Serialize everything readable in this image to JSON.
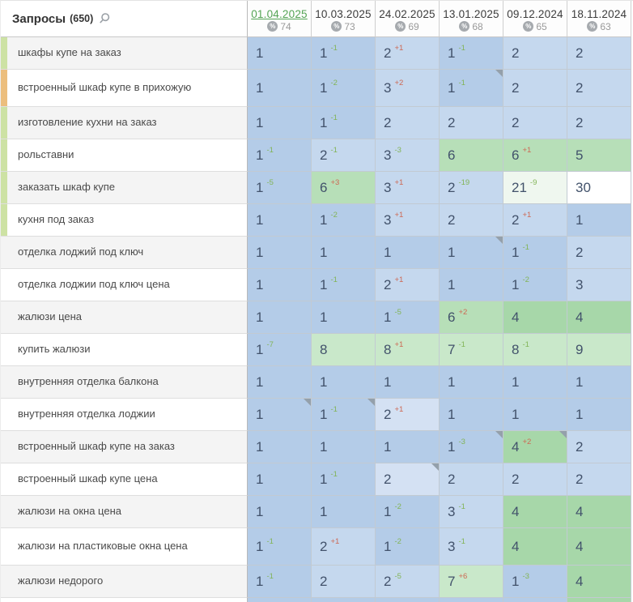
{
  "header": {
    "title": "Запросы",
    "count": "(650)",
    "search_icon": "magnifier",
    "columns": [
      {
        "date": "01.04.2025",
        "visibility": "74",
        "active": true
      },
      {
        "date": "10.03.2025",
        "visibility": "73",
        "active": false
      },
      {
        "date": "24.02.2025",
        "visibility": "69",
        "active": false
      },
      {
        "date": "13.01.2025",
        "visibility": "68",
        "active": false
      },
      {
        "date": "09.12.2024",
        "visibility": "65",
        "active": false
      },
      {
        "date": "18.11.2024",
        "visibility": "63",
        "active": false
      }
    ]
  },
  "rows": [
    {
      "keyword": "шкафы купе на заказ",
      "strip": "green",
      "zebra": "gray",
      "tall": false,
      "cells": [
        {
          "value": "1",
          "bg": "pos1"
        },
        {
          "value": "1",
          "change": "-1",
          "bg": "pos1"
        },
        {
          "value": "2",
          "change": "+1",
          "bg": "pos23"
        },
        {
          "value": "1",
          "change": "-1",
          "bg": "pos1"
        },
        {
          "value": "2",
          "bg": "pos23"
        },
        {
          "value": "2",
          "bg": "pos23"
        }
      ]
    },
    {
      "keyword": "встроенный шкаф купе в прихожую",
      "strip": "orange",
      "zebra": "white",
      "tall": true,
      "cells": [
        {
          "value": "1",
          "bg": "pos1"
        },
        {
          "value": "1",
          "change": "-2",
          "bg": "pos1"
        },
        {
          "value": "3",
          "change": "+2",
          "bg": "pos23"
        },
        {
          "value": "1",
          "change": "-1",
          "bg": "pos1",
          "marker": true
        },
        {
          "value": "2",
          "bg": "pos23"
        },
        {
          "value": "2",
          "bg": "pos23"
        }
      ]
    },
    {
      "keyword": "изготовление кухни на заказ",
      "strip": "green",
      "zebra": "gray",
      "tall": false,
      "cells": [
        {
          "value": "1",
          "bg": "pos1"
        },
        {
          "value": "1",
          "change": "-1",
          "bg": "pos1"
        },
        {
          "value": "2",
          "bg": "pos23"
        },
        {
          "value": "2",
          "bg": "pos23"
        },
        {
          "value": "2",
          "bg": "pos23"
        },
        {
          "value": "2",
          "bg": "pos23"
        }
      ]
    },
    {
      "keyword": "рольставни",
      "strip": "green",
      "zebra": "white",
      "tall": false,
      "cells": [
        {
          "value": "1",
          "change": "-1",
          "bg": "pos1"
        },
        {
          "value": "2",
          "change": "-1",
          "bg": "pos23"
        },
        {
          "value": "3",
          "change": "-3",
          "bg": "pos23"
        },
        {
          "value": "6",
          "bg": "green67"
        },
        {
          "value": "6",
          "change": "+1",
          "bg": "green67"
        },
        {
          "value": "5",
          "bg": "green67"
        }
      ]
    },
    {
      "keyword": "заказать шкаф купе",
      "strip": "green",
      "zebra": "gray",
      "tall": false,
      "cells": [
        {
          "value": "1",
          "change": "-5",
          "bg": "pos1"
        },
        {
          "value": "6",
          "change": "+3",
          "bg": "green67"
        },
        {
          "value": "3",
          "change": "+1",
          "bg": "pos23"
        },
        {
          "value": "2",
          "change": "-19",
          "bg": "pos23"
        },
        {
          "value": "21",
          "change": "-9",
          "bg": "pale"
        },
        {
          "value": "30",
          "bg": "white"
        }
      ]
    },
    {
      "keyword": "кухня под заказ",
      "strip": "green",
      "zebra": "white",
      "tall": false,
      "cells": [
        {
          "value": "1",
          "bg": "pos1"
        },
        {
          "value": "1",
          "change": "-2",
          "bg": "pos1"
        },
        {
          "value": "3",
          "change": "+1",
          "bg": "pos23"
        },
        {
          "value": "2",
          "bg": "pos23"
        },
        {
          "value": "2",
          "change": "+1",
          "bg": "pos23"
        },
        {
          "value": "1",
          "bg": "pos1"
        }
      ]
    },
    {
      "keyword": "отделка лоджий под ключ",
      "strip": null,
      "zebra": "gray",
      "tall": false,
      "cells": [
        {
          "value": "1",
          "bg": "pos1"
        },
        {
          "value": "1",
          "bg": "pos1"
        },
        {
          "value": "1",
          "bg": "pos1"
        },
        {
          "value": "1",
          "bg": "pos1",
          "marker": true
        },
        {
          "value": "1",
          "change": "-1",
          "bg": "pos1"
        },
        {
          "value": "2",
          "bg": "pos23"
        }
      ]
    },
    {
      "keyword": "отделка лоджии под ключ цена",
      "strip": null,
      "zebra": "white",
      "tall": false,
      "cells": [
        {
          "value": "1",
          "bg": "pos1"
        },
        {
          "value": "1",
          "change": "-1",
          "bg": "pos1"
        },
        {
          "value": "2",
          "change": "+1",
          "bg": "pos23"
        },
        {
          "value": "1",
          "bg": "pos1"
        },
        {
          "value": "1",
          "change": "-2",
          "bg": "pos1"
        },
        {
          "value": "3",
          "bg": "pos23"
        }
      ]
    },
    {
      "keyword": "жалюзи цена",
      "strip": null,
      "zebra": "gray",
      "tall": false,
      "cells": [
        {
          "value": "1",
          "bg": "pos1"
        },
        {
          "value": "1",
          "bg": "pos1"
        },
        {
          "value": "1",
          "change": "-5",
          "bg": "pos1"
        },
        {
          "value": "6",
          "change": "+2",
          "bg": "green67"
        },
        {
          "value": "4",
          "bg": "green45"
        },
        {
          "value": "4",
          "bg": "green45"
        }
      ]
    },
    {
      "keyword": "купить жалюзи",
      "strip": null,
      "zebra": "white",
      "tall": false,
      "cells": [
        {
          "value": "1",
          "change": "-7",
          "bg": "pos1"
        },
        {
          "value": "8",
          "bg": "green89"
        },
        {
          "value": "8",
          "change": "+1",
          "bg": "green89"
        },
        {
          "value": "7",
          "change": "-1",
          "bg": "green89"
        },
        {
          "value": "8",
          "change": "-1",
          "bg": "green89"
        },
        {
          "value": "9",
          "bg": "green89"
        }
      ]
    },
    {
      "keyword": "внутренняя отделка балкона",
      "strip": null,
      "zebra": "gray",
      "tall": false,
      "cells": [
        {
          "value": "1",
          "bg": "pos1"
        },
        {
          "value": "1",
          "bg": "pos1"
        },
        {
          "value": "1",
          "bg": "pos1"
        },
        {
          "value": "1",
          "bg": "pos1"
        },
        {
          "value": "1",
          "bg": "pos1"
        },
        {
          "value": "1",
          "bg": "pos1"
        }
      ]
    },
    {
      "keyword": "внутренняя отделка лоджии",
      "strip": null,
      "zebra": "white",
      "tall": false,
      "cells": [
        {
          "value": "1",
          "bg": "pos1",
          "marker": true
        },
        {
          "value": "1",
          "change": "-1",
          "bg": "pos1",
          "marker": true
        },
        {
          "value": "2",
          "change": "+1",
          "bg": "pos23light"
        },
        {
          "value": "1",
          "bg": "pos1"
        },
        {
          "value": "1",
          "bg": "pos1"
        },
        {
          "value": "1",
          "bg": "pos1"
        }
      ]
    },
    {
      "keyword": "встроенный шкаф купе на заказ",
      "strip": null,
      "zebra": "gray",
      "tall": false,
      "cells": [
        {
          "value": "1",
          "bg": "pos1"
        },
        {
          "value": "1",
          "bg": "pos1"
        },
        {
          "value": "1",
          "bg": "pos1"
        },
        {
          "value": "1",
          "change": "-3",
          "bg": "pos1",
          "marker": true
        },
        {
          "value": "4",
          "change": "+2",
          "bg": "green45",
          "marker": true
        },
        {
          "value": "2",
          "bg": "pos23"
        }
      ]
    },
    {
      "keyword": "встроенный шкаф купе цена",
      "strip": null,
      "zebra": "white",
      "tall": false,
      "cells": [
        {
          "value": "1",
          "bg": "pos1"
        },
        {
          "value": "1",
          "change": "-1",
          "bg": "pos1"
        },
        {
          "value": "2",
          "bg": "pos23light",
          "marker": true
        },
        {
          "value": "2",
          "bg": "pos23"
        },
        {
          "value": "2",
          "bg": "pos23"
        },
        {
          "value": "2",
          "bg": "pos23"
        }
      ]
    },
    {
      "keyword": "жалюзи на окна цена",
      "strip": null,
      "zebra": "gray",
      "tall": false,
      "cells": [
        {
          "value": "1",
          "bg": "pos1"
        },
        {
          "value": "1",
          "bg": "pos1"
        },
        {
          "value": "1",
          "change": "-2",
          "bg": "pos1"
        },
        {
          "value": "3",
          "change": "-1",
          "bg": "pos23"
        },
        {
          "value": "4",
          "bg": "green45"
        },
        {
          "value": "4",
          "bg": "green45"
        }
      ]
    },
    {
      "keyword": "жалюзи на пластиковые окна цена",
      "strip": null,
      "zebra": "white",
      "tall": true,
      "cells": [
        {
          "value": "1",
          "change": "-1",
          "bg": "pos1"
        },
        {
          "value": "2",
          "change": "+1",
          "bg": "pos23"
        },
        {
          "value": "1",
          "change": "-2",
          "bg": "pos1"
        },
        {
          "value": "3",
          "change": "-1",
          "bg": "pos23"
        },
        {
          "value": "4",
          "bg": "green45"
        },
        {
          "value": "4",
          "bg": "green45"
        }
      ]
    },
    {
      "keyword": "жалюзи недорого",
      "strip": null,
      "zebra": "gray",
      "tall": false,
      "cells": [
        {
          "value": "1",
          "change": "-1",
          "bg": "pos1"
        },
        {
          "value": "2",
          "bg": "pos23"
        },
        {
          "value": "2",
          "change": "-5",
          "bg": "pos23"
        },
        {
          "value": "7",
          "change": "+6",
          "bg": "green89"
        },
        {
          "value": "1",
          "change": "-3",
          "bg": "pos1"
        },
        {
          "value": "4",
          "bg": "green45"
        }
      ]
    }
  ],
  "partial_row": {
    "cell_bgs": [
      "pos1",
      "pos1",
      "pos1",
      "pos1",
      "pos1",
      "green45"
    ]
  },
  "colors": {
    "pos1": "#b4cce8",
    "pos23": "#c5d8ee",
    "pos23light": "#d4e1f3",
    "green45": "#a7d7a9",
    "green67": "#b7dfb8",
    "green89": "#c9e8ca",
    "pale": "#eff7ef",
    "white": "#ffffff",
    "strip_green": "#cde2a4",
    "strip_orange": "#ecbe7d",
    "change_up": "#82b457",
    "change_down": "#cd6853",
    "active_date": "#55a455"
  }
}
